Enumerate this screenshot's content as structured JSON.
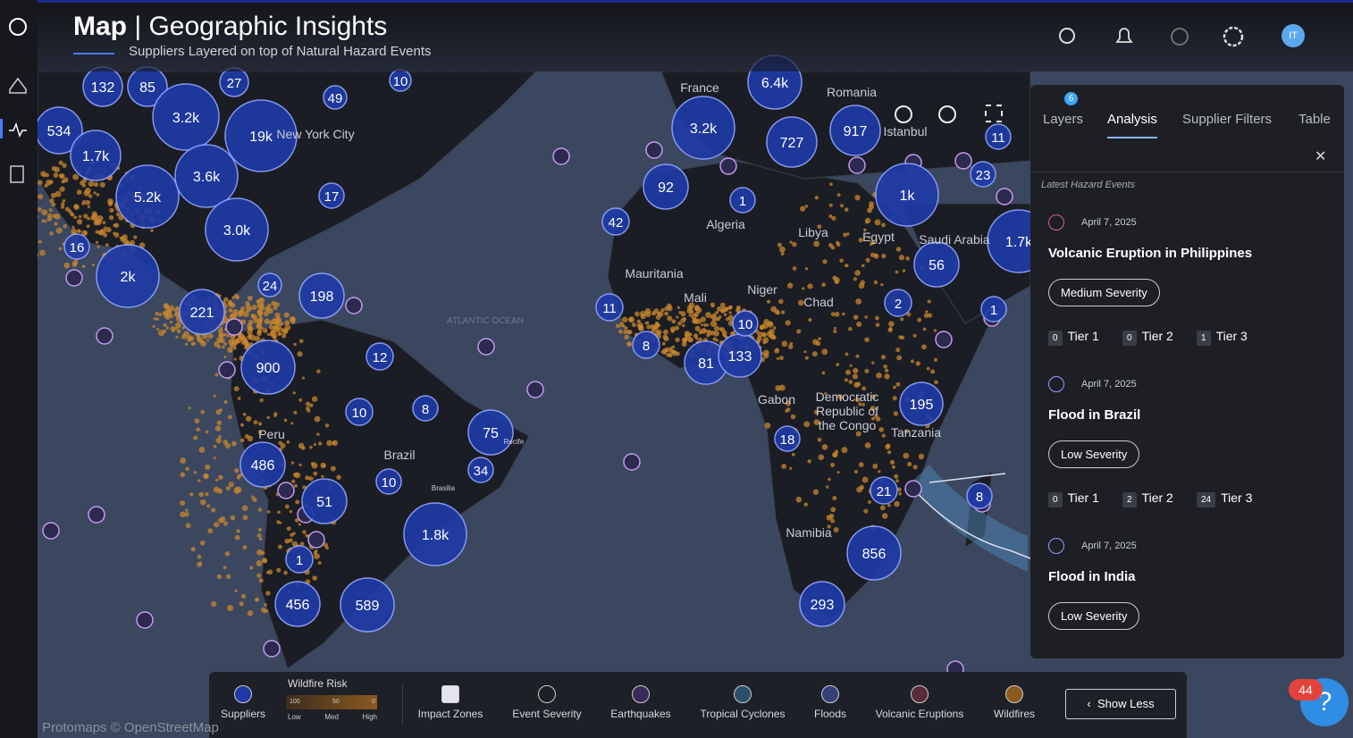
{
  "header": {
    "title": "Map",
    "subtitle_title": "Geographic Insights",
    "subtitle": "Suppliers Layered on top of Natural Hazard Events",
    "user_initials": "IT"
  },
  "map": {
    "clusters": [
      "132",
      "85",
      "27",
      "49",
      "10",
      "534",
      "1.7k",
      "3.2k",
      "19k",
      "5.2k",
      "3.6k",
      "3.0k",
      "17",
      "16",
      "2k",
      "221",
      "24",
      "198",
      "12",
      "900",
      "10",
      "8",
      "75",
      "486",
      "34",
      "10",
      "51",
      "1.8k",
      "1",
      "456",
      "589",
      "3.2k",
      "6.4k",
      "727",
      "917",
      "92",
      "1",
      "42",
      "1k",
      "23",
      "11",
      "56",
      "1.7k",
      "11",
      "8",
      "81",
      "133",
      "10",
      "2",
      "1",
      "195",
      "18",
      "21",
      "8",
      "856",
      "293"
    ],
    "places": [
      "France",
      "Romania",
      "Istanbul",
      "New York City",
      "Algeria",
      "Libya",
      "Egypt",
      "Saudi Arabia",
      "Mauritania",
      "Mali",
      "Niger",
      "Chad",
      "Gabon",
      "Democratic",
      "Republic of",
      "the Congo",
      "Tanzania",
      "Peru",
      "Brazil",
      "Namibia",
      "Brasilia",
      "Recife"
    ],
    "ocean_label": "ATLANTIC OCEAN",
    "attribution": "Protomaps © OpenStreetMap"
  },
  "panel": {
    "tabs": [
      {
        "label": "Layers",
        "badge": "6"
      },
      {
        "label": "Analysis"
      },
      {
        "label": "Supplier Filters"
      },
      {
        "label": "Table"
      }
    ],
    "section_title": "Latest Hazard Events",
    "events": [
      {
        "date": "April 7, 2025",
        "title": "Volcanic Eruption in Philippines",
        "severity": "Medium Severity",
        "tiers": [
          {
            "count": 0,
            "label": "Tier 1"
          },
          {
            "count": 0,
            "label": "Tier 2"
          },
          {
            "count": 1,
            "label": "Tier 3"
          }
        ]
      },
      {
        "date": "April 7, 2025",
        "title": "Flood in Brazil",
        "severity": "Low Severity",
        "tiers": [
          {
            "count": 0,
            "label": "Tier 1"
          },
          {
            "count": 2,
            "label": "Tier 2"
          },
          {
            "count": 24,
            "label": "Tier 3"
          }
        ]
      },
      {
        "date": "April 7, 2025",
        "title": "Flood in India",
        "severity": "Low Severity"
      }
    ]
  },
  "legend": {
    "items": [
      "Suppliers",
      "Impact Zones",
      "Event Severity",
      "Earthquakes",
      "Tropical Cyclones",
      "Floods",
      "Volcanic Eruptions",
      "Wildfires"
    ],
    "wildfire": {
      "title": "Wildfire Risk",
      "ticks": [
        "100",
        "50",
        "0"
      ],
      "scale": [
        "Low",
        "Med",
        "High"
      ]
    },
    "button": "Show Less"
  },
  "notification_count": "44"
}
